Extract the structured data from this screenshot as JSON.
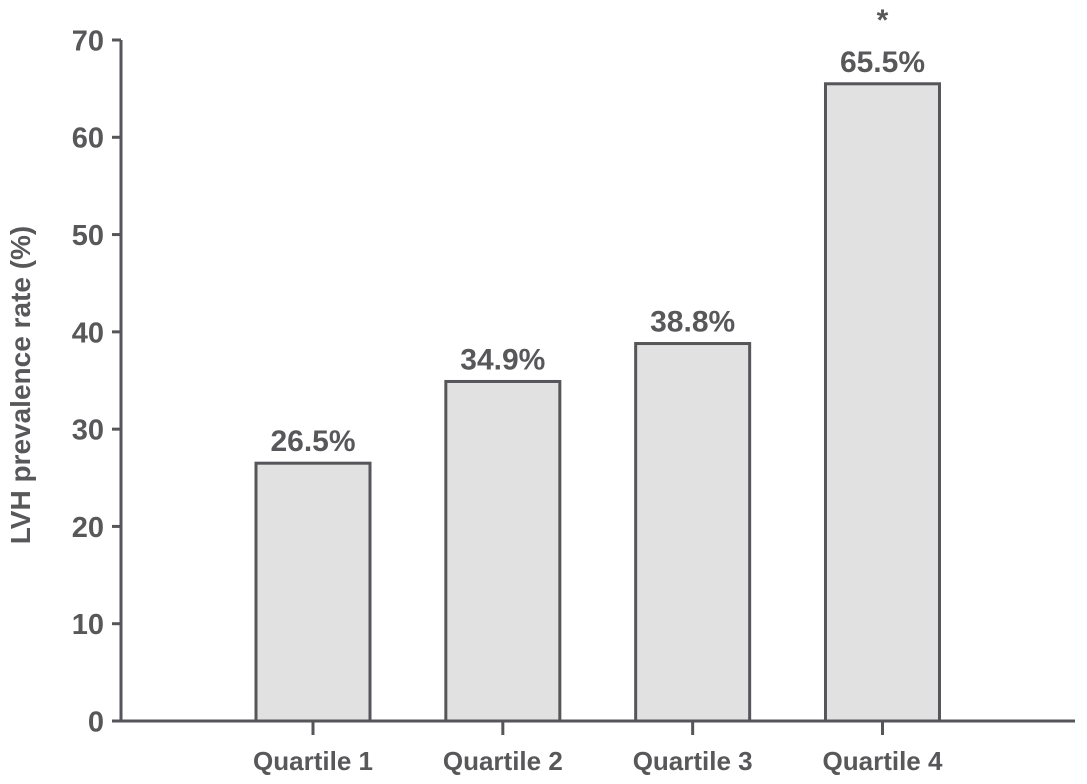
{
  "figure": {
    "background": "#ffffff"
  },
  "chart_data": {
    "type": "bar",
    "title": "",
    "xlabel": "",
    "ylabel": "LVH prevalence rate (%)",
    "categories": [
      "Quartile 1",
      "Quartile 2",
      "Quartile 3",
      "Quartile 4"
    ],
    "values": [
      26.5,
      34.9,
      38.8,
      65.5
    ],
    "value_labels": [
      "26.5%",
      "34.9%",
      "38.8%",
      "65.5%"
    ],
    "significance": {
      "marker": "*",
      "category": "Quartile 4",
      "category_index": 3
    },
    "ylim": [
      0,
      70
    ],
    "yticks": [
      0,
      10,
      20,
      30,
      40,
      50,
      60,
      70
    ],
    "grid": false,
    "legend": null,
    "colors": {
      "bar_fill": "#e1e1e1",
      "bar_stroke": "#56565a",
      "axis": "#56565a",
      "text": "#58585a"
    }
  }
}
